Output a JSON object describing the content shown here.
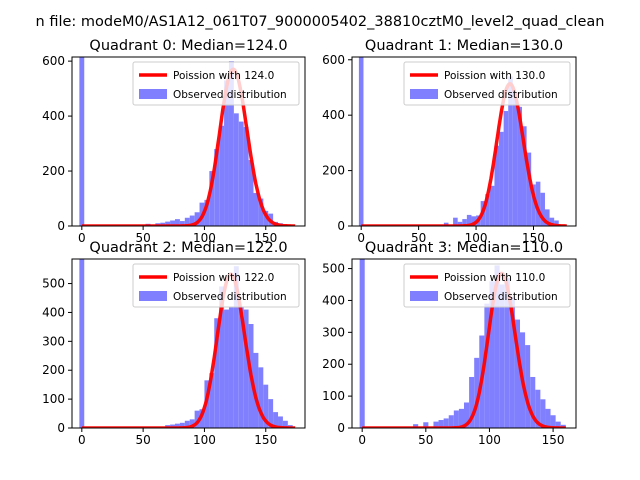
{
  "suptitle": "n file: modeM0/AS1A12_061T07_9000005402_38810cztM0_level2_quad_clean",
  "chart_data": [
    {
      "type": "bar",
      "title": "Quadrant 0: Median=124.0",
      "median": 124.0,
      "xlim": [
        -8,
        182
      ],
      "ylim": [
        0,
        615
      ],
      "xticks": [
        0,
        50,
        100,
        150
      ],
      "yticks": [
        0,
        200,
        400,
        600
      ],
      "bin_width": 4,
      "hist": [
        [
          0,
          615
        ],
        [
          52,
          8
        ],
        [
          60,
          10
        ],
        [
          64,
          12
        ],
        [
          68,
          16
        ],
        [
          72,
          20
        ],
        [
          76,
          25
        ],
        [
          80,
          18
        ],
        [
          84,
          30
        ],
        [
          88,
          38
        ],
        [
          92,
          50
        ],
        [
          96,
          85
        ],
        [
          100,
          95
        ],
        [
          104,
          200
        ],
        [
          108,
          280
        ],
        [
          112,
          365
        ],
        [
          116,
          530
        ],
        [
          120,
          600
        ],
        [
          124,
          410
        ],
        [
          128,
          380
        ],
        [
          132,
          360
        ],
        [
          136,
          240
        ],
        [
          140,
          120
        ],
        [
          144,
          100
        ],
        [
          148,
          55
        ],
        [
          152,
          45
        ],
        [
          156,
          15
        ],
        [
          160,
          10
        ],
        [
          164,
          5
        ]
      ],
      "legend": [
        "Poission with 124.0",
        "Observed distribution"
      ]
    },
    {
      "type": "bar",
      "title": "Quadrant 1: Median=130.0",
      "median": 130.0,
      "xlim": [
        -8,
        187
      ],
      "ylim": [
        0,
        610
      ],
      "xticks": [
        0,
        50,
        100,
        150
      ],
      "yticks": [
        0,
        200,
        400,
        600
      ],
      "bin_width": 4,
      "hist": [
        [
          0,
          610
        ],
        [
          72,
          12
        ],
        [
          80,
          30
        ],
        [
          84,
          15
        ],
        [
          88,
          25
        ],
        [
          92,
          40
        ],
        [
          96,
          35
        ],
        [
          100,
          38
        ],
        [
          104,
          90
        ],
        [
          108,
          115
        ],
        [
          112,
          145
        ],
        [
          116,
          290
        ],
        [
          120,
          340
        ],
        [
          124,
          415
        ],
        [
          128,
          540
        ],
        [
          132,
          480
        ],
        [
          136,
          430
        ],
        [
          140,
          360
        ],
        [
          144,
          265
        ],
        [
          148,
          150
        ],
        [
          152,
          160
        ],
        [
          156,
          120
        ],
        [
          160,
          60
        ],
        [
          164,
          30
        ],
        [
          168,
          20
        ]
      ],
      "legend": [
        "Poission with 130.0",
        "Observed distribution"
      ]
    },
    {
      "type": "bar",
      "title": "Quadrant 2: Median=122.0",
      "median": 122.0,
      "xlim": [
        -8,
        182
      ],
      "ylim": [
        0,
        585
      ],
      "xticks": [
        0,
        50,
        100,
        150
      ],
      "yticks": [
        0,
        100,
        200,
        300,
        400,
        500
      ],
      "bin_width": 4,
      "hist": [
        [
          0,
          585
        ],
        [
          68,
          10
        ],
        [
          72,
          12
        ],
        [
          76,
          15
        ],
        [
          80,
          18
        ],
        [
          84,
          25
        ],
        [
          88,
          30
        ],
        [
          92,
          60
        ],
        [
          96,
          65
        ],
        [
          100,
          165
        ],
        [
          104,
          190
        ],
        [
          108,
          380
        ],
        [
          112,
          490
        ],
        [
          116,
          410
        ],
        [
          120,
          420
        ],
        [
          124,
          560
        ],
        [
          128,
          420
        ],
        [
          132,
          410
        ],
        [
          136,
          360
        ],
        [
          140,
          260
        ],
        [
          144,
          210
        ],
        [
          148,
          150
        ],
        [
          152,
          100
        ],
        [
          156,
          55
        ],
        [
          160,
          40
        ],
        [
          164,
          25
        ],
        [
          168,
          10
        ]
      ],
      "legend": [
        "Poission with 122.0",
        "Observed distribution"
      ]
    },
    {
      "type": "bar",
      "title": "Quadrant 3: Median=110.0",
      "median": 110.0,
      "xlim": [
        -8,
        168
      ],
      "ylim": [
        0,
        530
      ],
      "xticks": [
        0,
        50,
        100,
        150
      ],
      "yticks": [
        0,
        100,
        200,
        300,
        400,
        500
      ],
      "bin_width": 4,
      "hist": [
        [
          0,
          530
        ],
        [
          40,
          12
        ],
        [
          48,
          18
        ],
        [
          56,
          20
        ],
        [
          60,
          25
        ],
        [
          64,
          30
        ],
        [
          68,
          40
        ],
        [
          72,
          55
        ],
        [
          76,
          60
        ],
        [
          80,
          80
        ],
        [
          84,
          160
        ],
        [
          88,
          220
        ],
        [
          92,
          290
        ],
        [
          96,
          390
        ],
        [
          100,
          460
        ],
        [
          104,
          510
        ],
        [
          108,
          450
        ],
        [
          112,
          470
        ],
        [
          116,
          410
        ],
        [
          120,
          340
        ],
        [
          124,
          300
        ],
        [
          128,
          260
        ],
        [
          132,
          160
        ],
        [
          136,
          120
        ],
        [
          140,
          90
        ],
        [
          144,
          60
        ],
        [
          148,
          40
        ],
        [
          152,
          20
        ],
        [
          156,
          10
        ]
      ],
      "legend": [
        "Poission with 110.0",
        "Observed distribution"
      ]
    }
  ]
}
